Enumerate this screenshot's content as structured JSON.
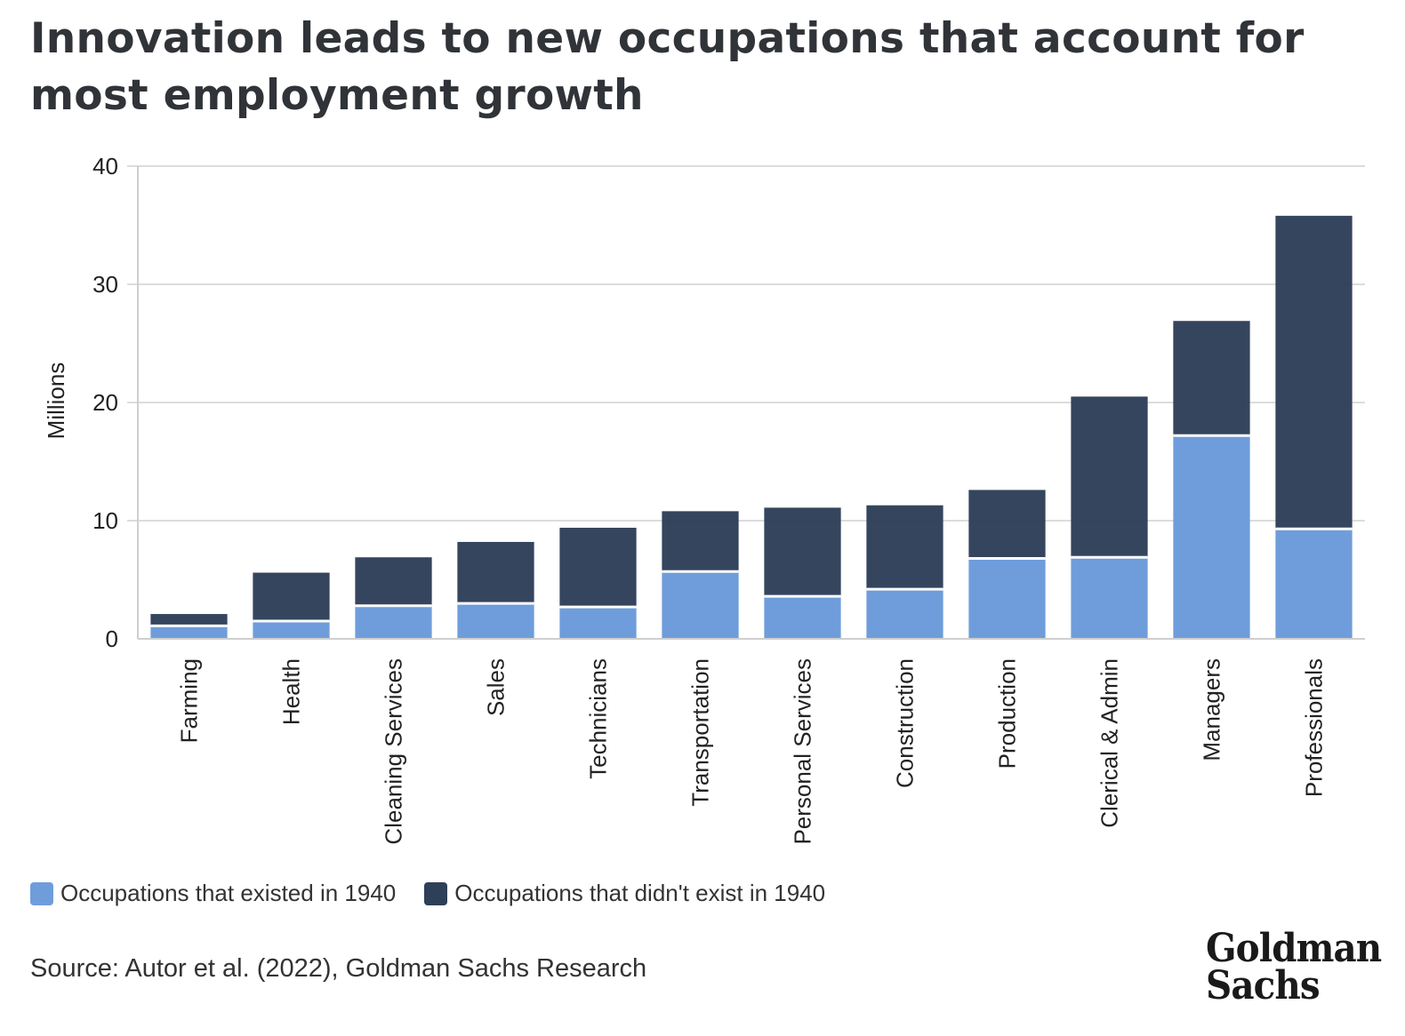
{
  "title": "Innovation leads to new occupations that account for most employment growth",
  "source": "Source: Autor et al. (2022), Goldman Sachs Research",
  "logo": {
    "line1": "Goldman",
    "line2": "Sachs"
  },
  "colors": {
    "existed": "#6f9ddb",
    "new": "#2e3f58",
    "grid": "#dcdcdc",
    "axis": "#cfcfcf"
  },
  "chart_data": {
    "type": "bar",
    "stacked": true,
    "ylabel": "Millions",
    "xlabel": "",
    "ylim": [
      0,
      40
    ],
    "yticks": [
      0,
      10,
      20,
      30,
      40
    ],
    "grid": true,
    "legend_position": "bottom-left",
    "categories": [
      "Farming",
      "Health",
      "Cleaning Services",
      "Sales",
      "Technicians",
      "Transportation",
      "Personal Services",
      "Construction",
      "Production",
      "Clerical & Admin",
      "Managers",
      "Professionals"
    ],
    "series": [
      {
        "name": "Occupations that existed in 1940",
        "color_key": "existed",
        "values": [
          1.1,
          1.5,
          2.8,
          3.0,
          2.7,
          5.7,
          3.6,
          4.2,
          6.8,
          6.9,
          17.2,
          9.3
        ]
      },
      {
        "name": "Occupations that didn't exist in 1940",
        "color_key": "new",
        "values": [
          1.0,
          4.1,
          4.1,
          5.2,
          6.7,
          5.1,
          7.5,
          7.1,
          5.8,
          13.6,
          9.7,
          26.5
        ]
      }
    ]
  }
}
